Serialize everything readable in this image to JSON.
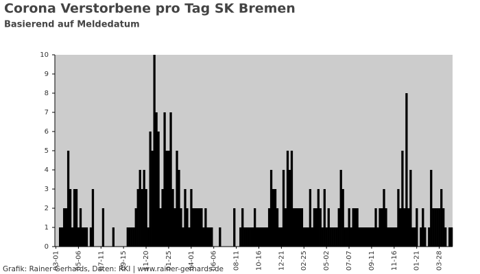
{
  "chart_data": {
    "type": "bar",
    "title": "Corona Verstorbene pro Tag SK Bremen",
    "subtitle": "Basierend auf Meldedatum",
    "footer": "Grafik: Rainer Gerhards, Daten: RKI | www.rainer-gerhards.de",
    "color": "#000000",
    "background": "#cccccc",
    "grid": false,
    "ylim": [
      0,
      10
    ],
    "yticks": [
      0,
      1,
      2,
      3,
      4,
      5,
      6,
      7,
      8,
      9,
      10
    ],
    "categories": [
      "03-01",
      null,
      null,
      null,
      null,
      null,
      null,
      null,
      null,
      null,
      null,
      "05-06",
      null,
      null,
      null,
      null,
      null,
      null,
      null,
      null,
      null,
      null,
      "07-11",
      null,
      null,
      null,
      null,
      null,
      null,
      null,
      null,
      null,
      null,
      "09-15",
      null,
      null,
      null,
      null,
      null,
      null,
      null,
      null,
      null,
      null,
      "11-20",
      null,
      null,
      null,
      null,
      null,
      null,
      null,
      null,
      null,
      null,
      "01-25",
      null,
      null,
      null,
      null,
      null,
      null,
      null,
      null,
      null,
      null,
      "04-01",
      null,
      null,
      null,
      null,
      null,
      null,
      null,
      null,
      null,
      null,
      "06-06",
      null,
      null,
      null,
      null,
      null,
      null,
      null,
      null,
      null,
      null,
      "08-11",
      null,
      null,
      null,
      null,
      null,
      null,
      null,
      null,
      null,
      null,
      "10-16",
      null,
      null,
      null,
      null,
      null,
      null,
      null,
      null,
      null,
      null,
      "12-21",
      null,
      null,
      null,
      null,
      null,
      null,
      null,
      null,
      null,
      null,
      "02-25",
      null,
      null,
      null,
      null,
      null,
      null,
      null,
      null,
      null,
      null,
      "05-02",
      null,
      null,
      null,
      null,
      null,
      null,
      null,
      null,
      null,
      null,
      "07-07",
      null,
      null,
      null,
      null,
      null,
      null,
      null,
      null,
      null,
      null,
      "09-11",
      null,
      null,
      null,
      null,
      null,
      null,
      null,
      null,
      null,
      null,
      "11-16",
      null,
      null,
      null,
      null,
      null,
      null,
      null,
      null,
      null,
      null,
      "01-21",
      null,
      null,
      null,
      null,
      null,
      null,
      null,
      null,
      null,
      null,
      "03-28",
      null,
      null,
      null,
      null,
      null,
      null
    ],
    "values": [
      0,
      0,
      1,
      1,
      2,
      2,
      5,
      3,
      1,
      3,
      3,
      1,
      2,
      1,
      1,
      1,
      0,
      1,
      3,
      0,
      0,
      0,
      0,
      2,
      0,
      0,
      0,
      0,
      1,
      0,
      0,
      0,
      0,
      0,
      0,
      1,
      1,
      1,
      1,
      2,
      3,
      4,
      3,
      4,
      3,
      1,
      6,
      5,
      10,
      7,
      6,
      2,
      3,
      7,
      5,
      5,
      7,
      3,
      2,
      5,
      4,
      2,
      1,
      3,
      2,
      1,
      3,
      2,
      2,
      2,
      2,
      2,
      1,
      2,
      1,
      1,
      1,
      0,
      0,
      0,
      1,
      0,
      0,
      0,
      0,
      0,
      0,
      2,
      0,
      0,
      1,
      2,
      1,
      1,
      1,
      1,
      1,
      2,
      1,
      1,
      1,
      1,
      1,
      1,
      2,
      4,
      3,
      3,
      2,
      1,
      1,
      4,
      2,
      5,
      4,
      5,
      2,
      2,
      2,
      2,
      2,
      1,
      1,
      1,
      3,
      1,
      2,
      2,
      3,
      2,
      1,
      3,
      1,
      2,
      1,
      1,
      1,
      1,
      2,
      4,
      3,
      1,
      1,
      2,
      1,
      2,
      2,
      2,
      1,
      1,
      1,
      1,
      1,
      1,
      1,
      1,
      2,
      1,
      2,
      2,
      3,
      2,
      1,
      1,
      1,
      1,
      1,
      3,
      2,
      5,
      2,
      8,
      2,
      4,
      1,
      1,
      2,
      0,
      1,
      2,
      1,
      0,
      1,
      4,
      2,
      2,
      2,
      2,
      3,
      2,
      1,
      0,
      1,
      1
    ]
  }
}
